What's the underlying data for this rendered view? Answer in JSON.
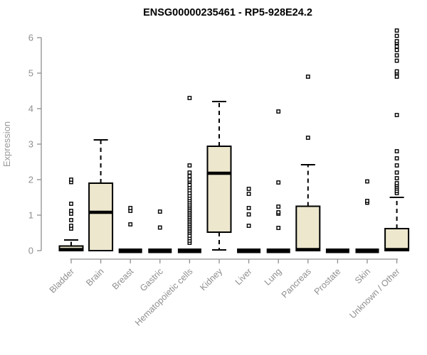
{
  "chart_data": {
    "type": "boxplot",
    "title": "ENSG00000235461 - RP5-928E24.2",
    "ylabel": "Expression",
    "xlabel": "",
    "ylim": [
      0,
      6
    ],
    "yticks": [
      0,
      1,
      2,
      3,
      4,
      5,
      6
    ],
    "grid": false,
    "legend": "none",
    "box_fill": "#ECE7CD",
    "box_stroke": "#000000",
    "axis_color": "#8f8f8f",
    "categories": [
      {
        "label": "Bladder",
        "whisker_low": 0,
        "q1": 0,
        "median": 0.03,
        "q3": 0.13,
        "whisker_high": 0.3,
        "outliers": [
          0.62,
          0.7,
          0.86,
          1.04,
          1.12,
          1.32,
          1.93,
          2.0
        ]
      },
      {
        "label": "Brain",
        "whisker_low": 0,
        "q1": 0,
        "median": 1.08,
        "q3": 1.9,
        "whisker_high": 3.12,
        "outliers": []
      },
      {
        "label": "Breast",
        "whisker_low": 0,
        "q1": 0,
        "median": 0,
        "q3": 0,
        "whisker_high": 0,
        "outliers": [
          0.74,
          1.12,
          1.2
        ]
      },
      {
        "label": "Gastric",
        "whisker_low": 0,
        "q1": 0,
        "median": 0,
        "q3": 0,
        "whisker_high": 0,
        "outliers": [
          0.65,
          1.1
        ]
      },
      {
        "label": "Hematopoietic cells",
        "whisker_low": 0,
        "q1": 0,
        "median": 0,
        "q3": 0,
        "whisker_high": 0,
        "outliers": [
          0.22,
          0.28,
          0.35,
          0.42,
          0.5,
          0.55,
          0.6,
          0.65,
          0.7,
          0.75,
          0.8,
          0.85,
          0.9,
          0.95,
          1.0,
          1.05,
          1.1,
          1.15,
          1.2,
          1.25,
          1.3,
          1.36,
          1.42,
          1.48,
          1.55,
          1.62,
          1.7,
          1.78,
          1.85,
          1.95,
          2.0,
          2.1,
          2.2,
          2.4,
          4.3
        ]
      },
      {
        "label": "Kidney",
        "whisker_low": 0.02,
        "q1": 0.52,
        "median": 2.18,
        "q3": 2.94,
        "whisker_high": 4.2,
        "outliers": []
      },
      {
        "label": "Liver",
        "whisker_low": 0,
        "q1": 0,
        "median": 0,
        "q3": 0,
        "whisker_high": 0,
        "outliers": [
          0.7,
          1.02,
          1.2,
          1.6,
          1.74
        ]
      },
      {
        "label": "Lung",
        "whisker_low": 0,
        "q1": 0,
        "median": 0,
        "q3": 0,
        "whisker_high": 0,
        "outliers": [
          0.64,
          1.04,
          1.08,
          1.24,
          1.92,
          3.92
        ]
      },
      {
        "label": "Pancreas",
        "whisker_low": 0,
        "q1": 0,
        "median": 0.03,
        "q3": 1.25,
        "whisker_high": 2.42,
        "outliers": [
          3.18,
          4.9
        ]
      },
      {
        "label": "Prostate",
        "whisker_low": 0,
        "q1": 0,
        "median": 0,
        "q3": 0,
        "whisker_high": 0,
        "outliers": []
      },
      {
        "label": "Skin",
        "whisker_low": 0,
        "q1": 0,
        "median": 0,
        "q3": 0,
        "whisker_high": 0,
        "outliers": [
          1.35,
          1.4,
          1.95
        ]
      },
      {
        "label": "Unknown / Other",
        "whisker_low": 0,
        "q1": 0,
        "median": 0.03,
        "q3": 0.62,
        "whisker_high": 1.5,
        "outliers": [
          1.62,
          1.68,
          1.75,
          1.8,
          1.85,
          1.9,
          2.04,
          2.2,
          2.4,
          2.6,
          2.8,
          3.82,
          4.9,
          5.0,
          5.05,
          5.35,
          5.5,
          5.65,
          5.75,
          5.85,
          5.9,
          6.05,
          6.2
        ]
      }
    ]
  }
}
